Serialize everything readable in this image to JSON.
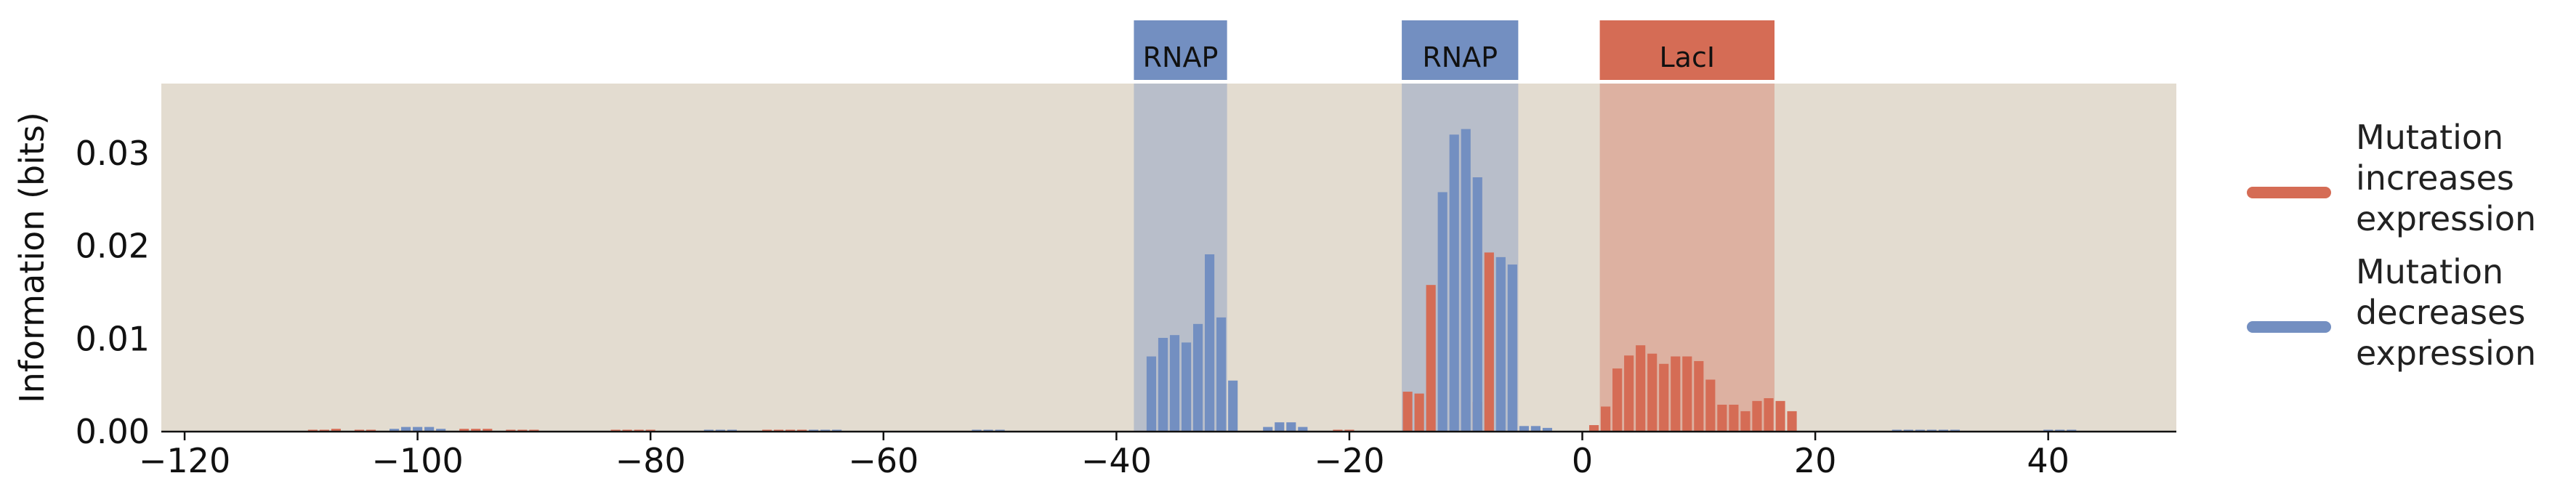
{
  "chart_data": {
    "type": "bar",
    "ylabel": "Information (bits)",
    "xlim": [
      -122,
      51
    ],
    "ylim": [
      0,
      0.0375
    ],
    "x_ticks": [
      -120,
      -100,
      -80,
      -60,
      -40,
      -20,
      0,
      20,
      40
    ],
    "x_tick_labels": [
      "−120",
      "−100",
      "−80",
      "−60",
      "−40",
      "−20",
      "0",
      "20",
      "40"
    ],
    "y_ticks": [
      0,
      0.01,
      0.02,
      0.03
    ],
    "y_tick_labels": [
      "0.00",
      "0.01",
      "0.02",
      "0.03"
    ],
    "grid": false,
    "legend_position": "right",
    "regions": [
      {
        "label": "RNAP",
        "x_start": -38.5,
        "x_end": -30.5,
        "color": "#738fc1"
      },
      {
        "label": "RNAP",
        "x_start": -15.5,
        "x_end": -5.5,
        "color": "#738fc1"
      },
      {
        "label": "LacI",
        "x_start": 1.5,
        "x_end": 16.5,
        "color": "#d56c55"
      }
    ],
    "series": [
      {
        "name": "Mutation increases expression",
        "color": "#d56c55",
        "points": [
          {
            "x": -109,
            "y": 0.0002
          },
          {
            "x": -108,
            "y": 0.0002
          },
          {
            "x": -107,
            "y": 0.0003
          },
          {
            "x": -105,
            "y": 0.0002
          },
          {
            "x": -104,
            "y": 0.0002
          },
          {
            "x": -96,
            "y": 0.0003
          },
          {
            "x": -95,
            "y": 0.0003
          },
          {
            "x": -94,
            "y": 0.0003
          },
          {
            "x": -92,
            "y": 0.0002
          },
          {
            "x": -91,
            "y": 0.0002
          },
          {
            "x": -90,
            "y": 0.0002
          },
          {
            "x": -83,
            "y": 0.0002
          },
          {
            "x": -82,
            "y": 0.0002
          },
          {
            "x": -81,
            "y": 0.0002
          },
          {
            "x": -80,
            "y": 0.0002
          },
          {
            "x": -70,
            "y": 0.0002
          },
          {
            "x": -69,
            "y": 0.0002
          },
          {
            "x": -68,
            "y": 0.0002
          },
          {
            "x": -67,
            "y": 0.0002
          },
          {
            "x": -21,
            "y": 0.0002
          },
          {
            "x": -20,
            "y": 0.0002
          },
          {
            "x": -15,
            "y": 0.0043
          },
          {
            "x": -14,
            "y": 0.0041
          },
          {
            "x": -13,
            "y": 0.0158
          },
          {
            "x": -8,
            "y": 0.0193
          },
          {
            "x": -9,
            "y": 0.0032
          },
          {
            "x": 1,
            "y": 0.0007
          },
          {
            "x": 2,
            "y": 0.0027
          },
          {
            "x": 3,
            "y": 0.0068
          },
          {
            "x": 4,
            "y": 0.0082
          },
          {
            "x": 5,
            "y": 0.0093
          },
          {
            "x": 6,
            "y": 0.0084
          },
          {
            "x": 7,
            "y": 0.0073
          },
          {
            "x": 8,
            "y": 0.0081
          },
          {
            "x": 9,
            "y": 0.0081
          },
          {
            "x": 10,
            "y": 0.0076
          },
          {
            "x": 11,
            "y": 0.0056
          },
          {
            "x": 12,
            "y": 0.0029
          },
          {
            "x": 13,
            "y": 0.0029
          },
          {
            "x": 14,
            "y": 0.0022
          },
          {
            "x": 15,
            "y": 0.0033
          },
          {
            "x": 16,
            "y": 0.0036
          },
          {
            "x": 17,
            "y": 0.0033
          },
          {
            "x": 18,
            "y": 0.0022
          }
        ]
      },
      {
        "name": "Mutation decreases expression",
        "color": "#738fc1",
        "points": [
          {
            "x": -102,
            "y": 0.0003
          },
          {
            "x": -101,
            "y": 0.0005
          },
          {
            "x": -100,
            "y": 0.0005
          },
          {
            "x": -99,
            "y": 0.0005
          },
          {
            "x": -98,
            "y": 0.0003
          },
          {
            "x": -75,
            "y": 0.0002
          },
          {
            "x": -74,
            "y": 0.0002
          },
          {
            "x": -73,
            "y": 0.0002
          },
          {
            "x": -66,
            "y": 0.0002
          },
          {
            "x": -65,
            "y": 0.0002
          },
          {
            "x": -64,
            "y": 0.0002
          },
          {
            "x": -52,
            "y": 0.0002
          },
          {
            "x": -51,
            "y": 0.0002
          },
          {
            "x": -50,
            "y": 0.0002
          },
          {
            "x": -37,
            "y": 0.0081
          },
          {
            "x": -36,
            "y": 0.0101
          },
          {
            "x": -35,
            "y": 0.0104
          },
          {
            "x": -34,
            "y": 0.0096
          },
          {
            "x": -33,
            "y": 0.0116
          },
          {
            "x": -32,
            "y": 0.0191
          },
          {
            "x": -31,
            "y": 0.0123
          },
          {
            "x": -30,
            "y": 0.0055
          },
          {
            "x": -27,
            "y": 0.0005
          },
          {
            "x": -26,
            "y": 0.001
          },
          {
            "x": -25,
            "y": 0.001
          },
          {
            "x": -24,
            "y": 0.0005
          },
          {
            "x": -12,
            "y": 0.0258
          },
          {
            "x": -11,
            "y": 0.032
          },
          {
            "x": -10,
            "y": 0.0326
          },
          {
            "x": -9,
            "y": 0.0274
          },
          {
            "x": -7,
            "y": 0.0188
          },
          {
            "x": -6,
            "y": 0.018
          },
          {
            "x": -5,
            "y": 0.0006
          },
          {
            "x": -4,
            "y": 0.0006
          },
          {
            "x": -3,
            "y": 0.0004
          },
          {
            "x": 27,
            "y": 0.0002
          },
          {
            "x": 28,
            "y": 0.0002
          },
          {
            "x": 29,
            "y": 0.0002
          },
          {
            "x": 30,
            "y": 0.0002
          },
          {
            "x": 31,
            "y": 0.0002
          },
          {
            "x": 32,
            "y": 0.0002
          },
          {
            "x": 40,
            "y": 0.0002
          },
          {
            "x": 41,
            "y": 0.0002
          },
          {
            "x": 42,
            "y": 0.0002
          }
        ]
      }
    ],
    "legend": [
      {
        "lines": [
          "Mutation",
          "increases",
          "expression"
        ],
        "color": "#d56c55"
      },
      {
        "lines": [
          "Mutation",
          "decreases",
          "expression"
        ],
        "color": "#738fc1"
      }
    ],
    "plot_background": "#e3dcd0"
  }
}
